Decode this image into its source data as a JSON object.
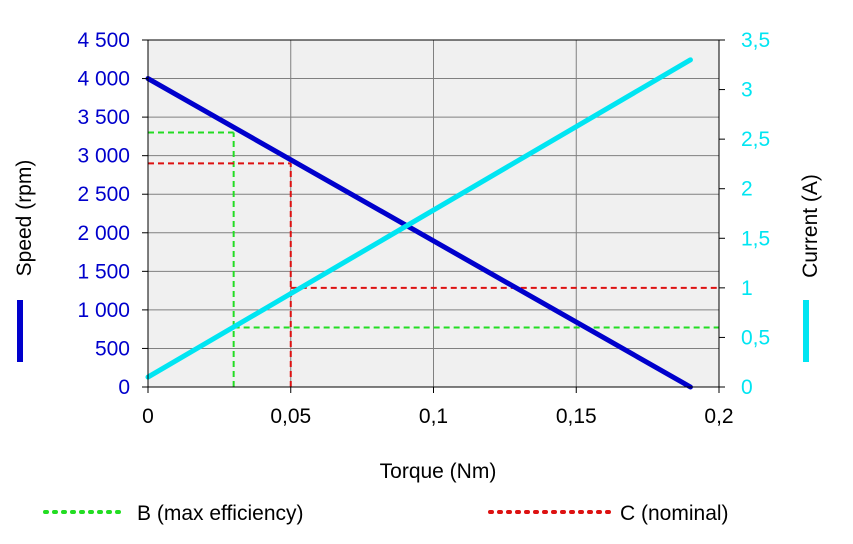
{
  "chart_data": {
    "type": "line",
    "xlabel": "Torque (Nm)",
    "ylabel_left": "Speed (rpm)",
    "ylabel_right": "Current (A)",
    "xlim": [
      0,
      0.2
    ],
    "ylim_left": [
      0,
      4500
    ],
    "ylim_right": [
      0,
      3.5
    ],
    "x_ticks": [
      "0",
      "0,05",
      "0,1",
      "0,15",
      "0,2"
    ],
    "y_left_ticks": [
      "0",
      "500",
      "1 000",
      "1 500",
      "2 000",
      "2 500",
      "3 000",
      "3 500",
      "4 000",
      "4 500"
    ],
    "y_right_ticks": [
      "0",
      "0,5",
      "1",
      "1,5",
      "2",
      "2,5",
      "3",
      "3,5"
    ],
    "grid": true,
    "series": [
      {
        "name": "",
        "axis": "left",
        "color": "#0000cc",
        "x": [
          0,
          0.19
        ],
        "y": [
          4000,
          0
        ]
      },
      {
        "name": "",
        "axis": "right",
        "color": "#00e5f2",
        "x": [
          0,
          0.19
        ],
        "y": [
          0.1,
          3.3
        ]
      }
    ],
    "reference_lines": [
      {
        "label": "B (max efficiency)",
        "color": "#22dd22",
        "x": 0.03,
        "speed": 3300,
        "current": 0.6
      },
      {
        "label": "C (nominal)",
        "color": "#dd1111",
        "x": 0.05,
        "speed": 2900,
        "current": 1.0
      }
    ],
    "legend": [
      {
        "label": "B (max efficiency)",
        "color": "#22dd22"
      },
      {
        "label": "C (nominal)",
        "color": "#dd1111"
      }
    ],
    "legend_position": "bottom",
    "colors": {
      "speed_axis": "#0000cc",
      "current_axis": "#00e5f2",
      "plot_background": "#f0f0f0",
      "grid": "#808080"
    }
  }
}
